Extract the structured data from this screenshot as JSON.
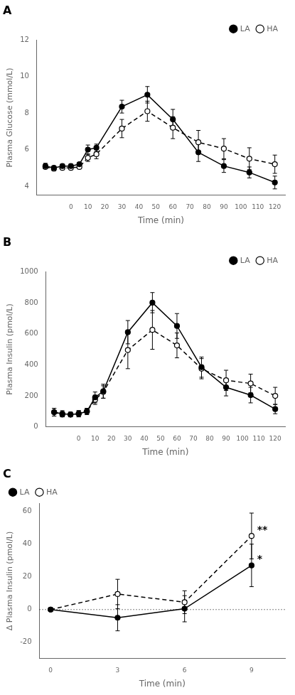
{
  "chart_data": [
    {
      "type": "line",
      "title": "A",
      "xlabel": "Time (min)",
      "ylabel": "Plasma Glucose (mmol/L)",
      "x": [
        -15,
        -10,
        -5,
        0,
        5,
        10,
        15,
        30,
        45,
        60,
        75,
        90,
        105,
        120
      ],
      "xlim": [
        -20,
        126
      ],
      "xticks": [
        0,
        10,
        20,
        30,
        40,
        50,
        60,
        70,
        80,
        90,
        100,
        110,
        120
      ],
      "ylim": [
        3.5,
        12
      ],
      "yticks": [
        4,
        6,
        8,
        10,
        12
      ],
      "grid": false,
      "legend": "upper right",
      "series": [
        {
          "name": "LA",
          "color": "#000000",
          "marker": "circle",
          "line_style": "solid",
          "values": [
            5.1,
            5.0,
            5.1,
            5.1,
            5.2,
            6.0,
            6.1,
            8.35,
            9.0,
            7.65,
            5.85,
            5.1,
            4.75,
            4.2
          ],
          "errors": [
            0.15,
            0.1,
            0.1,
            0.1,
            0.1,
            0.25,
            0.2,
            0.35,
            0.45,
            0.55,
            0.5,
            0.35,
            0.3,
            0.35
          ]
        },
        {
          "name": "HA",
          "color": "#000000",
          "marker": "open_circle",
          "line_style": "dashed",
          "values": [
            5.05,
            4.95,
            5.0,
            5.0,
            5.05,
            5.55,
            5.75,
            7.15,
            8.1,
            7.2,
            6.4,
            6.05,
            5.5,
            5.2
          ],
          "errors": [
            0.1,
            0.1,
            0.1,
            0.1,
            0.1,
            0.2,
            0.25,
            0.5,
            0.55,
            0.6,
            0.65,
            0.55,
            0.6,
            0.5
          ]
        }
      ]
    },
    {
      "type": "line",
      "title": "B",
      "xlabel": "Time (min)",
      "ylabel": "Plasma Insulin (pmol/L)",
      "x": [
        -15,
        -10,
        -5,
        0,
        5,
        10,
        15,
        30,
        45,
        60,
        75,
        90,
        105,
        120
      ],
      "xlim": [
        -20,
        126
      ],
      "xticks": [
        0,
        10,
        20,
        30,
        40,
        50,
        60,
        70,
        80,
        90,
        100,
        110,
        120
      ],
      "ylim": [
        0,
        1000
      ],
      "yticks": [
        0,
        200,
        400,
        600,
        800,
        1000
      ],
      "grid": false,
      "legend": "upper right",
      "series": [
        {
          "name": "LA",
          "color": "#000000",
          "marker": "circle",
          "line_style": "solid",
          "values": [
            95,
            85,
            80,
            85,
            100,
            190,
            230,
            610,
            800,
            650,
            385,
            255,
            205,
            115
          ],
          "errors": [
            25,
            20,
            15,
            20,
            20,
            35,
            45,
            75,
            65,
            80,
            65,
            55,
            50,
            30
          ]
        },
        {
          "name": "HA",
          "color": "#000000",
          "marker": "open_circle",
          "line_style": "dashed",
          "values": [
            95,
            80,
            80,
            85,
            100,
            175,
            225,
            495,
            625,
            525,
            375,
            300,
            280,
            200
          ],
          "errors": [
            25,
            15,
            15,
            20,
            20,
            30,
            40,
            120,
            125,
            80,
            65,
            65,
            60,
            55
          ]
        }
      ]
    },
    {
      "type": "line",
      "title": "C",
      "xlabel": "Time (min)",
      "ylabel": "Δ Plasma Insulin (pmol/L)",
      "x": [
        0,
        3,
        6,
        9
      ],
      "xlim": [
        -0.5,
        10.5
      ],
      "xticks": [
        0,
        3,
        6,
        9
      ],
      "ylim": [
        -30,
        65
      ],
      "yticks": [
        -20,
        0,
        20,
        40,
        60
      ],
      "grid": false,
      "legend": "upper left",
      "hlines": [
        0
      ],
      "annotations": [
        {
          "text": "**",
          "x": 9.25,
          "y": 45.5
        },
        {
          "text": "*",
          "x": 9.25,
          "y": 27.5
        }
      ],
      "series": [
        {
          "name": "LA",
          "color": "#000000",
          "marker": "circle",
          "line_style": "solid",
          "values": [
            0,
            -5,
            0.5,
            27
          ],
          "errors": [
            0,
            8,
            8,
            13
          ]
        },
        {
          "name": "HA",
          "color": "#000000",
          "marker": "open_circle",
          "line_style": "dashed",
          "values": [
            0,
            9.5,
            4.5,
            45
          ],
          "errors": [
            0,
            9,
            7,
            14
          ]
        }
      ]
    }
  ]
}
